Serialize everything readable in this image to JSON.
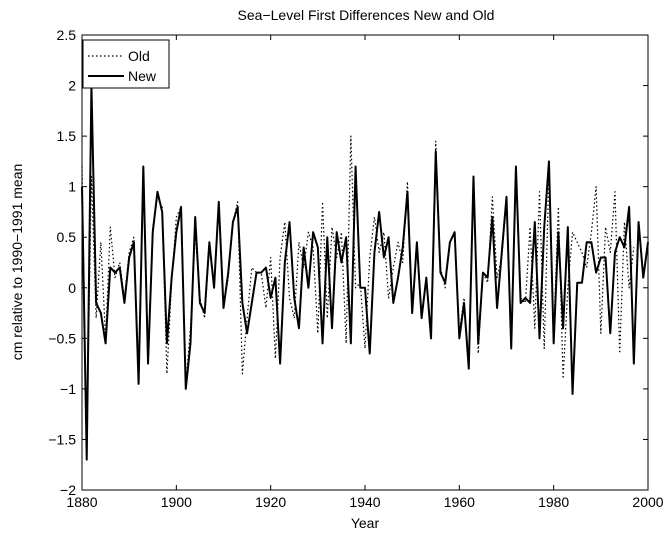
{
  "chart_data": {
    "type": "line",
    "title": "Sea−Level First Differences New and Old",
    "xlabel": "Year",
    "ylabel": "cm relative to 1990−1991 mean",
    "xlim": [
      1880,
      2000
    ],
    "ylim": [
      -2,
      2.5
    ],
    "x_ticks": [
      1880,
      1900,
      1920,
      1940,
      1960,
      1980,
      2000
    ],
    "x_tick_labels": [
      "1880",
      "1900",
      "1920",
      "1940",
      "1960",
      "1980",
      "2000"
    ],
    "y_ticks": [
      -2,
      -1.5,
      -1,
      -0.5,
      0,
      0.5,
      1,
      1.5,
      2,
      2.5
    ],
    "y_tick_labels": [
      "−2",
      "−1.5",
      "−1",
      "−0.5",
      "0",
      "0.5",
      "1",
      "1.5",
      "2",
      "2.5"
    ],
    "grid": false,
    "legend_position": "top-left",
    "x_start": 1880,
    "x_step": 1,
    "series": [
      {
        "name": "Old",
        "style": "dotted",
        "color": "#000000",
        "values": [
          1.2,
          -1.6,
          1.1,
          -0.3,
          0.45,
          -0.5,
          0.6,
          0.1,
          0.25,
          -0.1,
          0.35,
          0.5,
          -0.8,
          1.1,
          -0.7,
          0.6,
          0.9,
          0.8,
          -0.85,
          0.05,
          0.7,
          0.8,
          -0.95,
          -0.4,
          0.55,
          -0.1,
          -0.3,
          0.4,
          0.05,
          0.85,
          -0.2,
          0.1,
          0.65,
          0.85,
          -0.85,
          -0.3,
          0.2,
          0.15,
          0.15,
          -0.2,
          0.3,
          -0.7,
          0.3,
          0.65,
          -0.1,
          -0.3,
          0.45,
          0.2,
          0.55,
          0.4,
          -0.45,
          0.85,
          -0.3,
          0.6,
          0.3,
          0.55,
          -0.55,
          1.5,
          0.0,
          0.05,
          -0.6,
          0.3,
          0.7,
          0.35,
          0.55,
          -0.1,
          0.2,
          0.45,
          0.25,
          1.05,
          -0.2,
          0.4,
          -0.3,
          0.1,
          -0.45,
          1.45,
          0.2,
          0.0,
          0.45,
          0.55,
          -0.45,
          -0.1,
          -0.75,
          1.05,
          -0.65,
          0.15,
          0.05,
          0.9,
          0.1,
          0.3,
          0.85,
          -0.5,
          1.15,
          -0.1,
          -0.15,
          0.6,
          -0.4,
          0.95,
          -0.6,
          1.15,
          -0.45,
          0.8,
          -0.9,
          0.0,
          0.55,
          0.45,
          0.35,
          0.2,
          0.55,
          1.0,
          -0.45,
          0.6,
          0.35,
          0.95,
          -0.65,
          0.65,
          0.0,
          0.4
        ]
      },
      {
        "name": "New",
        "style": "solid",
        "color": "#000000",
        "values": [
          1.0,
          -1.7,
          2.0,
          -0.15,
          -0.25,
          -0.55,
          0.2,
          0.15,
          0.2,
          -0.15,
          0.3,
          0.45,
          -0.95,
          1.2,
          -0.75,
          0.55,
          0.95,
          0.75,
          -0.55,
          0.1,
          0.55,
          0.8,
          -1.0,
          -0.55,
          0.7,
          -0.15,
          -0.25,
          0.45,
          0.0,
          0.85,
          -0.2,
          0.15,
          0.65,
          0.8,
          -0.15,
          -0.45,
          -0.15,
          0.15,
          0.15,
          0.2,
          -0.1,
          0.1,
          -0.75,
          0.25,
          0.65,
          -0.1,
          -0.4,
          0.4,
          0.0,
          0.55,
          0.4,
          -0.55,
          0.5,
          -0.4,
          0.55,
          0.25,
          0.5,
          -0.55,
          1.2,
          0.0,
          0.0,
          -0.65,
          0.35,
          0.75,
          0.3,
          0.5,
          -0.15,
          0.1,
          0.4,
          0.95,
          -0.25,
          0.45,
          -0.3,
          0.1,
          -0.5,
          1.35,
          0.15,
          0.05,
          0.45,
          0.55,
          -0.5,
          -0.15,
          -0.8,
          1.1,
          -0.55,
          0.15,
          0.1,
          0.7,
          -0.2,
          0.35,
          0.9,
          -0.6,
          1.2,
          -0.15,
          -0.1,
          -0.15,
          0.65,
          -0.5,
          0.6,
          1.25,
          -0.55,
          0.55,
          -0.4,
          0.6,
          -1.05,
          0.05,
          0.05,
          0.45,
          0.45,
          0.15,
          0.3,
          0.3,
          -0.45,
          0.35,
          0.5,
          0.4,
          0.8,
          -0.75,
          0.65,
          0.1,
          0.45
        ]
      }
    ]
  }
}
